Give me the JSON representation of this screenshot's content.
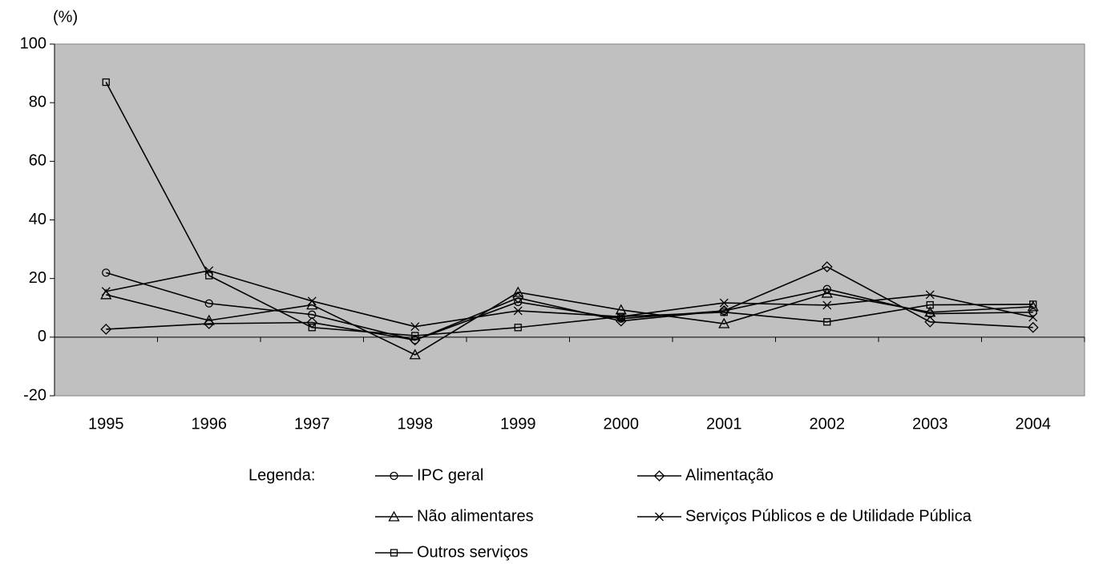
{
  "chart_data": {
    "type": "line",
    "y_label": "(%)",
    "legend_label": "Legenda:",
    "categories": [
      "1995",
      "1996",
      "1997",
      "1998",
      "1999",
      "2000",
      "2001",
      "2002",
      "2003",
      "2004"
    ],
    "series": [
      {
        "name": "IPC geral",
        "color": "#000000",
        "marker": "circle",
        "values": [
          22,
          11.5,
          7.7,
          -1,
          12,
          6.3,
          9,
          16.4,
          8,
          8.5
        ]
      },
      {
        "name": "Alimentação",
        "color": "#000000",
        "marker": "diamond",
        "values": [
          2.7,
          4.6,
          5,
          -1,
          13.4,
          5.5,
          9,
          24,
          5.2,
          3.3
        ]
      },
      {
        "name": "Não alimentares",
        "color": "#000000",
        "marker": "triangle",
        "values": [
          14.5,
          5.7,
          11,
          -6,
          15.3,
          9.3,
          4.6,
          15,
          8.5,
          10.4
        ]
      },
      {
        "name": "Serviços Públicos e de Utilidade Pública",
        "color": "#000000",
        "marker": "x",
        "values": [
          15.6,
          22.7,
          12.3,
          3.6,
          9,
          7,
          11.7,
          10.9,
          14.5,
          6.8
        ]
      },
      {
        "name": "Outros serviços",
        "color": "#000000",
        "marker": "square",
        "values": [
          87,
          21,
          3.3,
          0.5,
          3.3,
          7,
          8.5,
          5.2,
          11,
          11.2
        ]
      }
    ],
    "ylim": [
      -20,
      100
    ],
    "yticks": [
      -20,
      0,
      20,
      40,
      60,
      80,
      100
    ],
    "plot_background": "#c0c0c0"
  }
}
